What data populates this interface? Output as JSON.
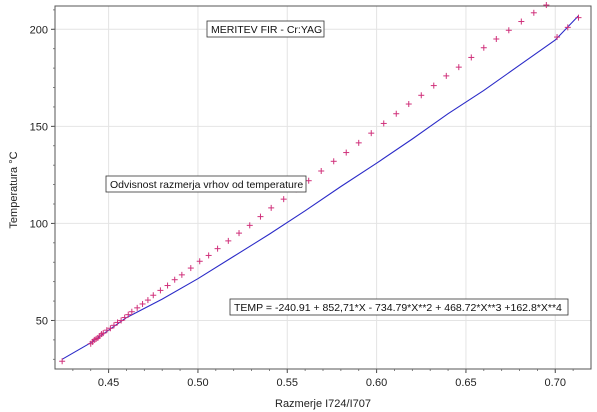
{
  "chart_data": {
    "type": "scatter",
    "xlabel": "Razmerje I724/I707",
    "ylabel": "Temperatura °C",
    "xlim": [
      0.42,
      0.72
    ],
    "ylim": [
      25,
      212
    ],
    "x_ticks": [
      "0.45",
      "0.50",
      "0.55",
      "0.60",
      "0.65",
      "0.70"
    ],
    "y_ticks": [
      "50",
      "100",
      "150",
      "200"
    ],
    "grid": true,
    "annotations": [
      "MERITEV FIR - Cr:YAG",
      "Odvisnost razmerja vrhov od temperature",
      "TEMP = -240.91 + 852,71*X - 734.79*X**2 + 468.72*X**3 +162.8*X**4"
    ],
    "series": [
      {
        "marker": "+",
        "color": "#d0307a",
        "x": [
          0.424,
          0.44,
          0.441,
          0.442,
          0.443,
          0.444,
          0.445,
          0.446,
          0.447,
          0.449,
          0.451,
          0.453,
          0.455,
          0.457,
          0.459,
          0.461,
          0.463,
          0.466,
          0.469,
          0.472,
          0.475,
          0.479,
          0.483,
          0.487,
          0.491,
          0.496,
          0.501,
          0.506,
          0.511,
          0.517,
          0.523,
          0.529,
          0.535,
          0.541,
          0.548,
          0.555,
          0.562,
          0.569,
          0.576,
          0.583,
          0.59,
          0.597,
          0.604,
          0.611,
          0.618,
          0.625,
          0.632,
          0.639,
          0.646,
          0.653,
          0.66,
          0.667,
          0.674,
          0.681,
          0.688,
          0.695,
          0.701,
          0.707,
          0.713
        ],
        "y": [
          29,
          38,
          39,
          40,
          40.5,
          41,
          42,
          43,
          43.5,
          45,
          46,
          47.5,
          49,
          50,
          51.5,
          53,
          54.5,
          56.5,
          58.5,
          60.5,
          63,
          65.5,
          68,
          71,
          73.5,
          77,
          80.5,
          83.5,
          87,
          91,
          95,
          99,
          103.5,
          108,
          112.5,
          117.5,
          122,
          127,
          132,
          136.5,
          141.5,
          146.5,
          151.5,
          156.5,
          161.5,
          166,
          171,
          176,
          180.5,
          185.5,
          190.5,
          195,
          199.5,
          204,
          208.5,
          212.5,
          196,
          201,
          206
        ]
      }
    ],
    "fit_curve": {
      "color": "#2b2bc8",
      "x": [
        0.424,
        0.44,
        0.46,
        0.48,
        0.5,
        0.52,
        0.54,
        0.56,
        0.58,
        0.6,
        0.62,
        0.64,
        0.66,
        0.68,
        0.7,
        0.713
      ],
      "y": [
        30,
        38.5,
        51.5,
        61,
        71.5,
        83,
        94.5,
        106.5,
        119,
        131,
        143.5,
        156.5,
        168.5,
        181.5,
        194.5,
        207
      ]
    }
  }
}
